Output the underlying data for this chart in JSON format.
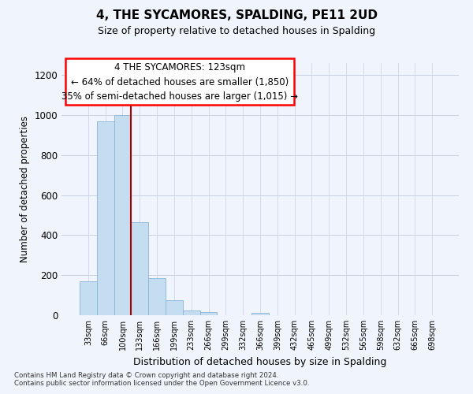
{
  "title": "4, THE SYCAMORES, SPALDING, PE11 2UD",
  "subtitle": "Size of property relative to detached houses in Spalding",
  "xlabel": "Distribution of detached houses by size in Spalding",
  "ylabel": "Number of detached properties",
  "footnote1": "Contains HM Land Registry data © Crown copyright and database right 2024.",
  "footnote2": "Contains public sector information licensed under the Open Government Licence v3.0.",
  "bar_labels": [
    "33sqm",
    "66sqm",
    "100sqm",
    "133sqm",
    "166sqm",
    "199sqm",
    "233sqm",
    "266sqm",
    "299sqm",
    "332sqm",
    "366sqm",
    "399sqm",
    "432sqm",
    "465sqm",
    "499sqm",
    "532sqm",
    "565sqm",
    "598sqm",
    "632sqm",
    "665sqm",
    "698sqm"
  ],
  "bar_values": [
    170,
    970,
    1000,
    465,
    185,
    75,
    25,
    15,
    0,
    0,
    10,
    0,
    0,
    0,
    0,
    0,
    0,
    0,
    0,
    0,
    0
  ],
  "bar_color": "#c5ddf0",
  "bar_edge_color": "#8ab4d4",
  "vline_color": "#aa0000",
  "ylim": [
    0,
    1260
  ],
  "yticks": [
    0,
    200,
    400,
    600,
    800,
    1000,
    1200
  ],
  "ann_line1": "4 THE SYCAMORES: 123sqm",
  "ann_line2": "← 64% of detached houses are smaller (1,850)",
  "ann_line3": "35% of semi-detached houses are larger (1,015) →",
  "background_color": "#f0f4fc",
  "grid_color": "#c8d0e0"
}
